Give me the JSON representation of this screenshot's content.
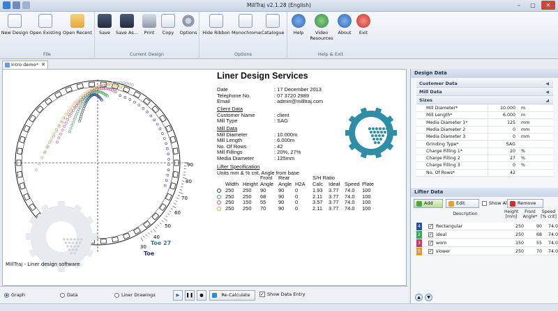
{
  "window": {
    "title": "MillTraj v2.1.28  (English)"
  },
  "ribbon": {
    "groups": [
      {
        "label": "File",
        "buttons": [
          "New Design",
          "Open Existing",
          "Open Recent"
        ]
      },
      {
        "label": "Current Design",
        "buttons": [
          "Save",
          "Save As...",
          "Print",
          "Copy",
          "Options"
        ]
      },
      {
        "label": "Options",
        "buttons": [
          "Hide Ribbon",
          "Monochrome",
          "Catalogue"
        ]
      },
      {
        "label": "Help & Exit",
        "buttons": [
          "Help",
          "Video Resources",
          "About",
          "Exit"
        ]
      }
    ]
  },
  "tab": {
    "label": "Intro demo*"
  },
  "report": {
    "title": "Liner Design Services",
    "fields": [
      {
        "k": "Date",
        "v": ": 17 December 2013"
      },
      {
        "k": "Telephone No.",
        "v": ": 07 3720 2989"
      },
      {
        "k": "Email",
        "v": ": admin@milltraj.com"
      }
    ],
    "client_head": "Client Data",
    "client": [
      {
        "k": "Customer Name",
        "v": ": client"
      },
      {
        "k": "Mill Type",
        "v": ": SAG"
      }
    ],
    "mill_head": "Mill Data",
    "mill": [
      {
        "k": "Mill Diameter",
        "v": ": 10.000m"
      },
      {
        "k": "Mill Length",
        "v": ": 6.000m"
      },
      {
        "k": "No. Of Rows",
        "v": ": 42"
      },
      {
        "k": "Mill Fillings",
        "v": ": 20%, 27%"
      },
      {
        "k": "Media Diameter",
        "v": ": 125mm"
      }
    ],
    "lifter_head": "Lifter Specification",
    "lifter_units": "Units mm & % crit, Angle from base",
    "table": {
      "headers_top": [
        "",
        "",
        "Front",
        "Rear",
        "",
        "S/H Ratio",
        "",
        "",
        ""
      ],
      "headers": [
        "Width",
        "Height",
        "Angle",
        "Angle",
        "H2A",
        "Calc",
        "Ideal",
        "Speed",
        "Plate"
      ],
      "rows": [
        {
          "color": "#1f2d6e",
          "cells": [
            "250",
            "250",
            "90",
            "90",
            "0",
            "1.93",
            "3.77",
            "74.0",
            "100"
          ]
        },
        {
          "color": "#3aa655",
          "cells": [
            "250",
            "250",
            "68",
            "90",
            "0",
            "2.11",
            "3.77",
            "74.0",
            "100"
          ]
        },
        {
          "color": "#d6486a",
          "cells": [
            "250",
            "150",
            "55",
            "90",
            "0",
            "3.57",
            "3.77",
            "74.0",
            "100"
          ]
        },
        {
          "color": "#e8a23b",
          "cells": [
            "250",
            "250",
            "70",
            "90",
            "0",
            "2.11",
            "3.77",
            "74.0",
            "100"
          ]
        }
      ]
    },
    "angle_labels": [
      "90",
      "80",
      "70",
      "60",
      "50",
      "40",
      "30"
    ],
    "toe_27": "Toe 27",
    "toe": "Toe",
    "caption": "MillTraj - Liner design software"
  },
  "bottom": {
    "radios": [
      {
        "label": "Graph",
        "on": true
      },
      {
        "label": "Data",
        "on": false
      },
      {
        "label": "Liner Drawings",
        "on": false
      }
    ],
    "recalc": "Re-Calculate",
    "show_entry": "Show Data Entry"
  },
  "design_panel": {
    "title": "Design Data",
    "sections": [
      "Customer Data",
      "Mill Data",
      "Sizes"
    ],
    "rows": [
      {
        "n": "Mill Diameter*",
        "v": "10.000",
        "u": "m"
      },
      {
        "n": "Mill Length*",
        "v": "6.000",
        "u": "m"
      },
      {
        "n": "Media Diameter 1*",
        "v": "125",
        "u": "mm"
      },
      {
        "n": "Media Diameter 2",
        "v": "0",
        "u": "mm"
      },
      {
        "n": "Media Diameter 3",
        "v": "0",
        "u": "mm"
      },
      {
        "n": "Grinding Type*",
        "v": "SAG",
        "u": ""
      },
      {
        "n": "Charge Filling 1*",
        "v": "20",
        "u": "%"
      },
      {
        "n": "Charge Filling 2",
        "v": "27",
        "u": "%"
      },
      {
        "n": "Charge Filling 3",
        "v": "0",
        "u": "%"
      },
      {
        "n": "No. Of Rows*",
        "v": "42",
        "u": ""
      }
    ]
  },
  "lifter_panel": {
    "title": "Lifter Data",
    "add": "Add",
    "edit": "Edit",
    "show_all": "Show All",
    "remove": "Remove",
    "headers": {
      "desc": "Description",
      "height": "Height [mm]",
      "front": "Front Angle*",
      "speed": "Speed [% crit]"
    },
    "rows": [
      {
        "num": "4",
        "color": "#2c4fa3",
        "desc": "Rectangular",
        "height": "250",
        "front": "90",
        "speed": "74.0"
      },
      {
        "num": "2",
        "color": "#35a852",
        "desc": "ideal",
        "height": "250",
        "front": "68",
        "speed": "74.0"
      },
      {
        "num": "3",
        "color": "#c8385e",
        "desc": "worn",
        "height": "150",
        "front": "55",
        "speed": "74.0"
      },
      {
        "num": "5",
        "color": "#e09a35",
        "desc": "slower",
        "height": "250",
        "front": "70",
        "speed": "74.0"
      }
    ]
  }
}
